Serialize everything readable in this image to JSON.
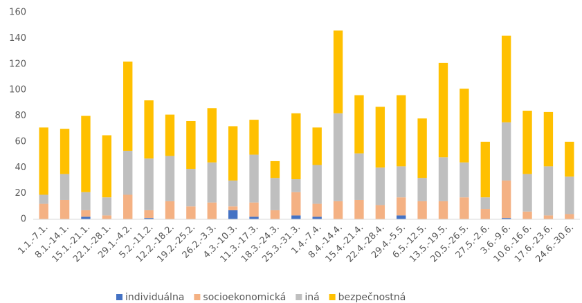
{
  "chart_data": {
    "type": "stacked_bar",
    "categories": [
      "1.1.-7.1.",
      "8.1.-14.1.",
      "15.1.-21.1.",
      "22.1.-28.1.",
      "29.1.-4.2.",
      "5.2.-11.2.",
      "12.2.-18.2.",
      "19.2.-25.2.",
      "26.2.-3.3.",
      "4.3.-10.3.",
      "11.3.-17.3.",
      "18.3.-24.3.",
      "25.3.-31.3.",
      "1.4.-7.4.",
      "8.4.-14.4.",
      "15.4.-21.4.",
      "22.4.-28.4.",
      "29.4.-5.5.",
      "6.5.-12.5.",
      "13.5.-19.5.",
      "20.5.-26.5.",
      "27.5.-2.6.",
      "3.6.-9.6.",
      "10.6.-16.6.",
      "17.6.-23.6.",
      "24.6.-30.6."
    ],
    "series": [
      {
        "name": "individuálna",
        "color": "#4472c4",
        "values": [
          0,
          0,
          2,
          0,
          0,
          1,
          0,
          0,
          0,
          7,
          2,
          0,
          3,
          2,
          0,
          0,
          0,
          3,
          0,
          0,
          0,
          0,
          1,
          0,
          0,
          0
        ]
      },
      {
        "name": "socioekonomická",
        "color": "#f4b183",
        "values": [
          12,
          15,
          5,
          3,
          19,
          6,
          14,
          10,
          13,
          3,
          11,
          7,
          18,
          10,
          14,
          15,
          11,
          14,
          14,
          14,
          17,
          8,
          29,
          6,
          3,
          4
        ]
      },
      {
        "name": "iná",
        "color": "#bfbfbf",
        "values": [
          7,
          20,
          14,
          14,
          34,
          40,
          35,
          29,
          31,
          20,
          37,
          25,
          10,
          30,
          68,
          36,
          29,
          24,
          18,
          34,
          27,
          9,
          45,
          29,
          38,
          29
        ]
      },
      {
        "name": "bezpečnostná",
        "color": "#ffc000",
        "values": [
          52,
          35,
          59,
          48,
          69,
          45,
          32,
          37,
          42,
          42,
          27,
          13,
          51,
          29,
          64,
          45,
          47,
          55,
          46,
          73,
          57,
          43,
          67,
          49,
          42,
          27
        ]
      }
    ],
    "ylim": [
      0,
      160
    ],
    "yticks": [
      0,
      20,
      40,
      60,
      80,
      100,
      120,
      140,
      160
    ],
    "grid": false,
    "legend": "bottom"
  }
}
